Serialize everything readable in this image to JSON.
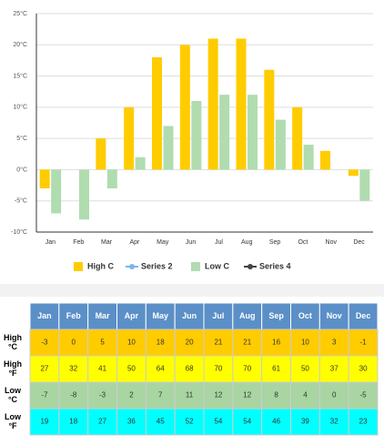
{
  "chart_data": {
    "type": "bar",
    "categories": [
      "Jan",
      "Feb",
      "Mar",
      "Apr",
      "May",
      "Jun",
      "Jul",
      "Aug",
      "Sep",
      "Oct",
      "Nov",
      "Dec"
    ],
    "series": [
      {
        "name": "High C",
        "color": "#ffcc00",
        "type": "bar",
        "values": [
          -3,
          0,
          5,
          10,
          18,
          20,
          21,
          21,
          16,
          10,
          3,
          -1
        ]
      },
      {
        "name": "Series 2",
        "color": "#7cb5ec",
        "type": "line",
        "values": [
          null,
          null,
          null,
          null,
          null,
          null,
          null,
          null,
          null,
          null,
          null,
          null
        ]
      },
      {
        "name": "Low C",
        "color": "#b0dcb0",
        "type": "bar",
        "values": [
          -7,
          -8,
          -3,
          2,
          7,
          11,
          12,
          12,
          8,
          4,
          0,
          -5
        ]
      },
      {
        "name": "Series 4",
        "color": "#434348",
        "type": "line",
        "values": [
          null,
          null,
          null,
          null,
          null,
          null,
          null,
          null,
          null,
          null,
          null,
          null
        ]
      }
    ],
    "ylim": [
      -10,
      25
    ],
    "yticks": [
      {
        "value": -10,
        "label": "-10°C"
      },
      {
        "value": -5,
        "label": "-5°C"
      },
      {
        "value": 0,
        "label": "0°C"
      },
      {
        "value": 5,
        "label": "5°C"
      },
      {
        "value": 10,
        "label": "10°C"
      },
      {
        "value": 15,
        "label": "15°C"
      },
      {
        "value": 20,
        "label": "20°C"
      },
      {
        "value": 25,
        "label": "25°C"
      }
    ],
    "grid": true,
    "legend": "bottom"
  },
  "table": {
    "header": [
      "Jan",
      "Feb",
      "Mar",
      "Apr",
      "May",
      "Jun",
      "Jul",
      "Aug",
      "Sep",
      "Oct",
      "Nov",
      "Dec"
    ],
    "rows": [
      {
        "label": [
          "High",
          "°C"
        ],
        "color": "#ffcc00",
        "values": [
          -3,
          0,
          5,
          10,
          18,
          20,
          21,
          21,
          16,
          10,
          3,
          -1
        ]
      },
      {
        "label": [
          "High",
          "°F"
        ],
        "color": "#ffff00",
        "values": [
          27,
          32,
          41,
          50,
          64,
          68,
          70,
          70,
          61,
          50,
          37,
          30
        ]
      },
      {
        "label": [
          "Low",
          "°C"
        ],
        "color": "#a8d5a2",
        "values": [
          -7,
          -8,
          -3,
          2,
          7,
          11,
          12,
          12,
          8,
          4,
          0,
          -5
        ]
      },
      {
        "label": [
          "Low",
          "°F"
        ],
        "color": "#00ffff",
        "values": [
          19,
          18,
          27,
          36,
          45,
          52,
          54,
          54,
          46,
          39,
          32,
          23
        ]
      }
    ]
  }
}
